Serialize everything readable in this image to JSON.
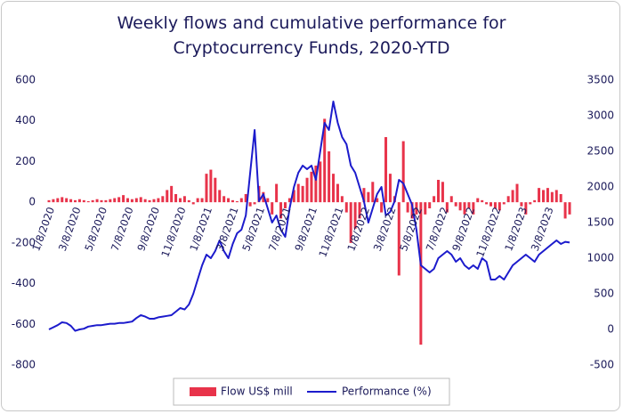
{
  "chart_data": {
    "type": "bar-line",
    "title": "Weekly flows and cumulative performance for Cryptocurrency Funds, 2020-YTD",
    "categories": [
      "1/8/2020",
      null,
      null,
      null,
      null,
      null,
      "3/8/2020",
      null,
      null,
      null,
      null,
      null,
      "5/8/2020",
      null,
      null,
      null,
      null,
      null,
      "7/8/2020",
      null,
      null,
      null,
      null,
      null,
      "9/8/2020",
      null,
      null,
      null,
      null,
      null,
      "11/8/2020",
      null,
      null,
      null,
      null,
      null,
      "1/8/2021",
      null,
      null,
      null,
      null,
      null,
      "3/8/2021",
      null,
      null,
      null,
      null,
      null,
      "5/8/2021",
      null,
      null,
      null,
      null,
      null,
      "7/8/2021",
      null,
      null,
      null,
      null,
      null,
      "9/8/2021",
      null,
      null,
      null,
      null,
      null,
      "11/8/2021",
      null,
      null,
      null,
      null,
      null,
      "1/8/2022",
      null,
      null,
      null,
      null,
      null,
      "3/8/2022",
      null,
      null,
      null,
      null,
      null,
      "5/8/2022",
      null,
      null,
      null,
      null,
      null,
      "7/8/2022",
      null,
      null,
      null,
      null,
      null,
      "9/8/2022",
      null,
      null,
      null,
      null,
      null,
      "11/8/2022",
      null,
      null,
      null,
      null,
      null,
      "1/8/2023",
      null,
      null,
      null,
      null,
      null,
      "3/8/2023",
      null,
      null,
      null,
      null,
      null
    ],
    "series": [
      {
        "name": "Flow US$ mill",
        "color": "#e8334a",
        "axis": "y",
        "values": [
          10,
          15,
          20,
          25,
          20,
          15,
          10,
          15,
          10,
          5,
          10,
          15,
          10,
          10,
          15,
          20,
          25,
          35,
          20,
          15,
          20,
          25,
          15,
          10,
          15,
          20,
          30,
          60,
          80,
          40,
          20,
          30,
          10,
          -10,
          20,
          20,
          140,
          160,
          120,
          60,
          30,
          20,
          10,
          5,
          20,
          40,
          -20,
          -10,
          80,
          50,
          20,
          -60,
          90,
          -80,
          -30,
          20,
          60,
          90,
          80,
          120,
          150,
          180,
          200,
          410,
          250,
          140,
          90,
          30,
          -50,
          -200,
          -130,
          -80,
          70,
          50,
          100,
          20,
          -50,
          320,
          140,
          30,
          -360,
          300,
          -50,
          -80,
          -60,
          -700,
          -60,
          -30,
          30,
          110,
          100,
          -50,
          30,
          -20,
          -40,
          -60,
          -30,
          -60,
          20,
          10,
          -10,
          -20,
          -30,
          -40,
          -10,
          30,
          60,
          90,
          -20,
          -60,
          -10,
          10,
          70,
          60,
          70,
          50,
          60,
          40,
          -80,
          -60
        ]
      },
      {
        "name": "Performance (%)",
        "color": "#1c1bcc",
        "axis": "y2",
        "values": [
          0,
          30,
          60,
          100,
          90,
          50,
          -20,
          0,
          10,
          40,
          50,
          60,
          60,
          70,
          80,
          80,
          90,
          90,
          100,
          110,
          160,
          200,
          180,
          150,
          150,
          170,
          180,
          190,
          200,
          250,
          300,
          280,
          350,
          500,
          700,
          900,
          1050,
          1000,
          1100,
          1250,
          1100,
          1000,
          1200,
          1350,
          1400,
          1600,
          2200,
          2800,
          1800,
          1900,
          1700,
          1500,
          1600,
          1400,
          1300,
          1700,
          2000,
          2200,
          2300,
          2250,
          2300,
          2100,
          2500,
          2900,
          2800,
          3200,
          2900,
          2700,
          2600,
          2300,
          2200,
          2000,
          1800,
          1500,
          1700,
          1900,
          2000,
          1600,
          1650,
          1800,
          2100,
          2050,
          1900,
          1750,
          1400,
          900,
          850,
          800,
          850,
          1000,
          1050,
          1100,
          1050,
          950,
          1000,
          900,
          850,
          900,
          850,
          1000,
          950,
          700,
          700,
          750,
          700,
          800,
          900,
          950,
          1000,
          1050,
          1000,
          950,
          1050,
          1100,
          1150,
          1200,
          1250,
          1200,
          1230,
          1220
        ]
      }
    ],
    "ylim": [
      -800,
      600
    ],
    "yticks": [
      -800,
      -600,
      -400,
      -200,
      0,
      200,
      400,
      600
    ],
    "y2lim": [
      -500,
      3500
    ],
    "y2ticks": [
      -500,
      0,
      500,
      1000,
      1500,
      2000,
      2500,
      3000,
      3500
    ],
    "grid": false,
    "legend": "bottom"
  }
}
